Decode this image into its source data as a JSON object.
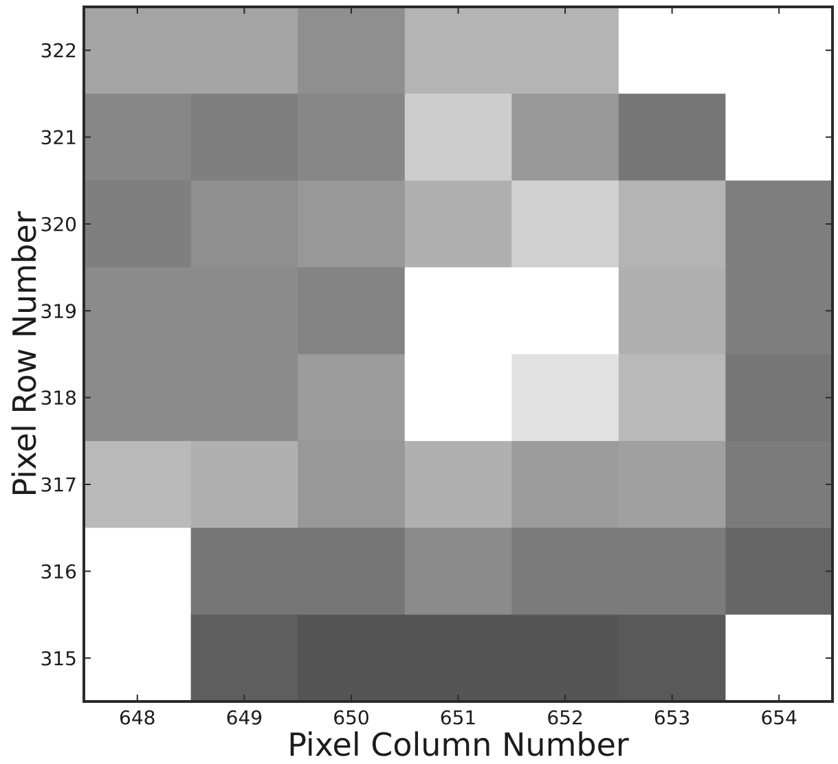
{
  "chart_data": {
    "type": "heatmap",
    "title": "",
    "xlabel": "Pixel Column Number",
    "ylabel": "Pixel Row Number",
    "x": [
      648,
      649,
      650,
      651,
      652,
      653,
      654
    ],
    "y": [
      322,
      321,
      320,
      319,
      318,
      317,
      316,
      315
    ],
    "xlim": [
      647.5,
      654.5
    ],
    "ylim": [
      314.5,
      322.5
    ],
    "colormap": "gray",
    "value_scale": "relative brightness (0 = black, 1 = white)",
    "values": [
      [
        0.56,
        0.56,
        0.46,
        0.64,
        0.64,
        1.0,
        1.0
      ],
      [
        0.42,
        0.38,
        0.42,
        0.76,
        0.5,
        0.34,
        1.0
      ],
      [
        0.38,
        0.46,
        0.5,
        0.62,
        0.78,
        0.64,
        0.38
      ],
      [
        0.44,
        0.44,
        0.4,
        1.0,
        1.0,
        0.62,
        0.38
      ],
      [
        0.44,
        0.44,
        0.52,
        1.0,
        0.86,
        0.66,
        0.34
      ],
      [
        0.66,
        0.62,
        0.5,
        0.62,
        0.52,
        0.54,
        0.36
      ],
      [
        1.0,
        0.34,
        0.34,
        0.44,
        0.36,
        0.36,
        0.26
      ],
      [
        1.0,
        0.22,
        0.18,
        0.18,
        0.18,
        0.2,
        1.0
      ]
    ]
  }
}
